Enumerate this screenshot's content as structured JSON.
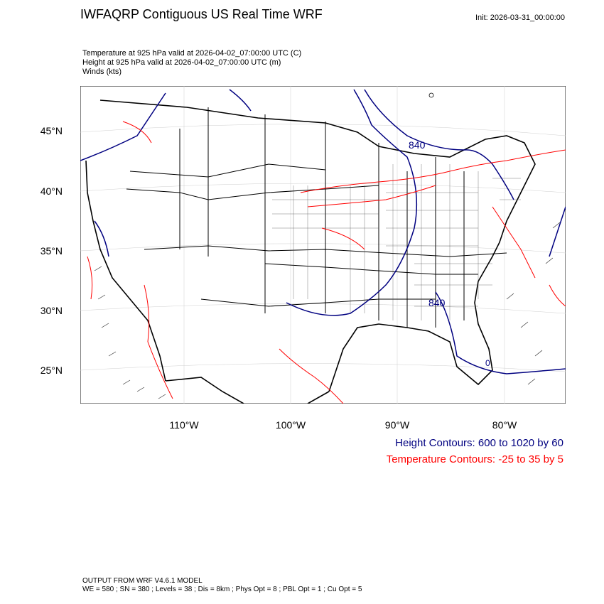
{
  "header": {
    "title": "IWFAQRP Contiguous US Real Time WRF",
    "init": "Init: 2026-03-31_00:00:00",
    "subtitle_lines": [
      "Temperature at 925 hPa valid at 2026-04-02_07:00:00 UTC   (C)",
      "Height at 925 hPa valid at 2026-04-02_07:00:00 UTC   (m)",
      "Winds   (kts)"
    ]
  },
  "map": {
    "lat_labels": [
      "45°N",
      "40°N",
      "35°N",
      "30°N",
      "25°N"
    ],
    "lon_labels": [
      "110°W",
      "100°W",
      "90°W",
      "80°W"
    ],
    "contour_labels": [
      "840",
      "840",
      "0"
    ],
    "colors": {
      "height": "#000080",
      "temperature": "#ff0000",
      "boundary": "#000000"
    }
  },
  "legend": {
    "height": "Height Contours: 600 to 1020 by 60",
    "temperature": "Temperature Contours: -25 to 35 by 5"
  },
  "footer": {
    "line1": "OUTPUT FROM WRF V4.6.1 MODEL",
    "line2": "WE = 580 ; SN = 380 ; Levels = 38 ; Dis = 8km ; Phys Opt = 8 ; PBL Opt = 1 ; Cu Opt = 5"
  }
}
